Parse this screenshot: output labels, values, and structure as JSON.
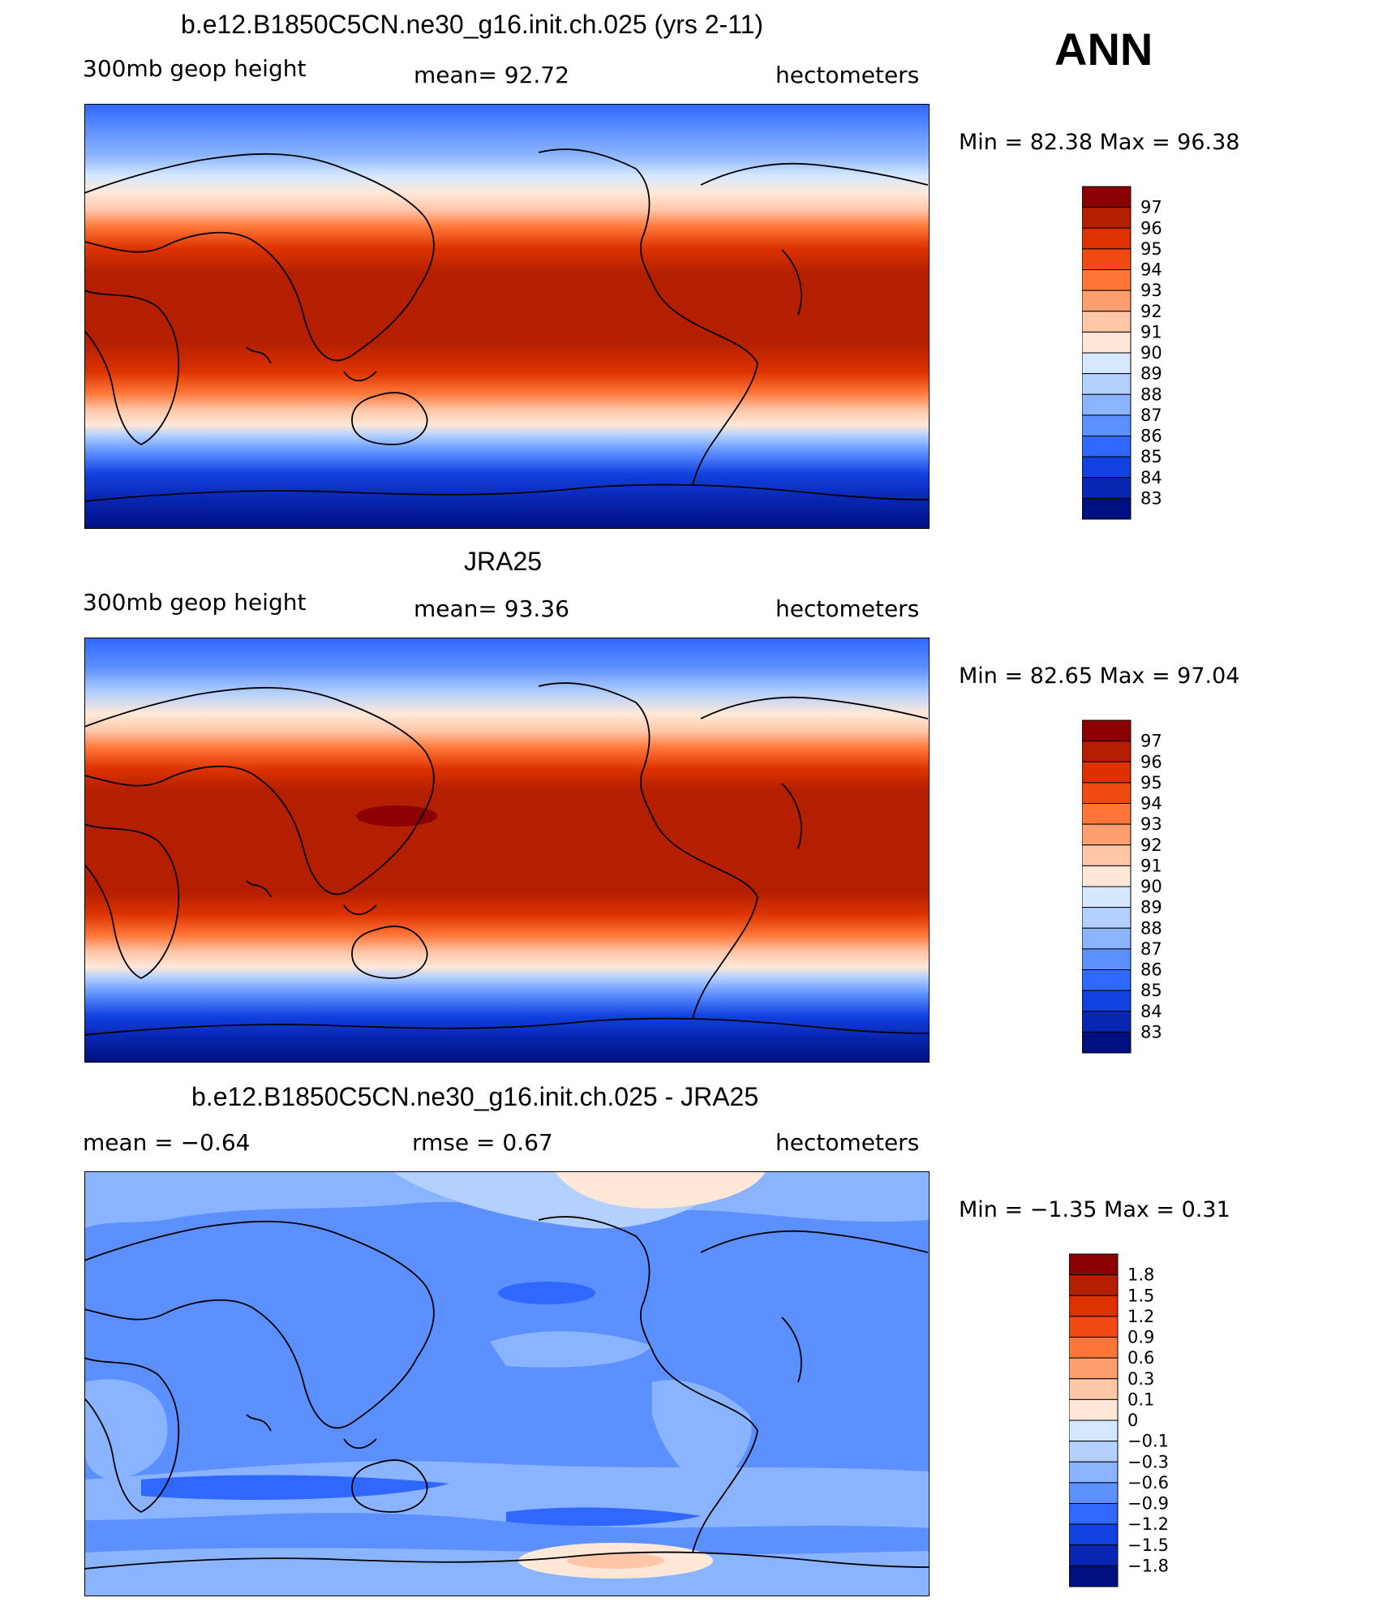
{
  "season": "ANN",
  "panels": [
    {
      "title": "b.e12.B1850C5CN.ne30_g16.init.ch.025 (yrs 2-11)",
      "left_label": "300mb geop height",
      "center_label": "mean=   92.72",
      "right_label": "hectometers",
      "minmax": "Min =   82.38 Max =   96.38",
      "levels": [
        "97",
        "96",
        "95",
        "94",
        "93",
        "92",
        "91",
        "90",
        "89",
        "88",
        "87",
        "86",
        "85",
        "84",
        "83"
      ],
      "colors": [
        "#8b0000",
        "#b31f00",
        "#dd3200",
        "#f14a12",
        "#ff7638",
        "#ff9f70",
        "#ffc6a8",
        "#ffe8d8",
        "#d5e8ff",
        "#b3d0ff",
        "#8ab4ff",
        "#5c8fff",
        "#2f68ff",
        "#1142e0",
        "#0826b2",
        "#001080"
      ]
    },
    {
      "title": "JRA25",
      "left_label": "300mb geop height",
      "center_label": "mean=   93.36",
      "right_label": "hectometers",
      "minmax": "Min =   82.65 Max =   97.04",
      "levels": [
        "97",
        "96",
        "95",
        "94",
        "93",
        "92",
        "91",
        "90",
        "89",
        "88",
        "87",
        "86",
        "85",
        "84",
        "83"
      ],
      "colors": [
        "#8b0000",
        "#b31f00",
        "#dd3200",
        "#f14a12",
        "#ff7638",
        "#ff9f70",
        "#ffc6a8",
        "#ffe8d8",
        "#d5e8ff",
        "#b3d0ff",
        "#8ab4ff",
        "#5c8fff",
        "#2f68ff",
        "#1142e0",
        "#0826b2",
        "#001080"
      ]
    },
    {
      "title": "b.e12.B1850C5CN.ne30_g16.init.ch.025 - JRA25",
      "left_label": "mean =   −0.64",
      "center_label": "rmse =    0.67",
      "right_label": "hectometers",
      "minmax": "Min =   −1.35 Max =    0.31",
      "levels": [
        "1.8",
        "1.5",
        "1.2",
        "0.9",
        "0.6",
        "0.3",
        "0.1",
        "0",
        "−0.1",
        "−0.3",
        "−0.6",
        "−0.9",
        "−1.2",
        "−1.5",
        "−1.8"
      ],
      "colors": [
        "#8b0000",
        "#b31f00",
        "#dd3200",
        "#f14a12",
        "#ff7638",
        "#ff9f70",
        "#ffc6a8",
        "#ffe8d8",
        "#d5e8ff",
        "#b3d0ff",
        "#8ab4ff",
        "#5c8fff",
        "#2f68ff",
        "#1142e0",
        "#0826b2",
        "#001080"
      ]
    }
  ]
}
